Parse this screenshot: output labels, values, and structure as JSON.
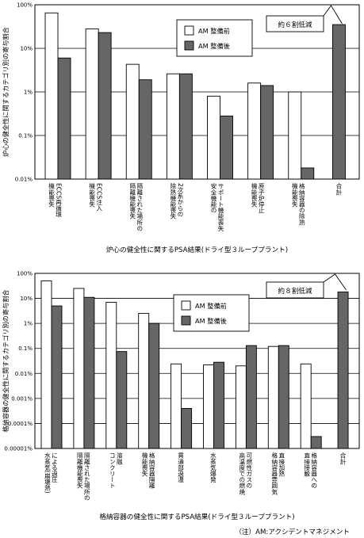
{
  "colors": {
    "before": "#ffffff",
    "after": "#666666",
    "stroke": "#000000"
  },
  "chart_data": [
    {
      "type": "bar",
      "title": "炉心の健全性に関するPSA結果(ドライ型３ループプラント)",
      "ylabel": "炉心の健全性に関するカテゴリ別の寄与割合",
      "scale": "log",
      "ylim": [
        0.01,
        100
      ],
      "yticks": [
        "0.01%",
        "0.1%",
        "1%",
        "10%",
        "100%"
      ],
      "grid": "horizontal at decades",
      "legend_position": "top-center",
      "categories": [
        [
          "ECCS再循環",
          "機能喪失"
        ],
        [
          "ECCS注入",
          "機能喪失"
        ],
        [
          "隔離された場所の",
          "隔離機能喪失"
        ],
        [
          "2次系からの",
          "除熱機能喪失"
        ],
        [
          "サポート機能喪失",
          "安全機能の"
        ],
        [
          "原子炉停止",
          "機能喪失"
        ],
        [
          "格納容器の除熱",
          "機能喪失"
        ],
        [
          "合計"
        ]
      ],
      "series": [
        {
          "name": "AM 整備前",
          "values": [
            65,
            28,
            4.3,
            2.6,
            0.8,
            1.6,
            1.0,
            null
          ]
        },
        {
          "name": "AM 整備後",
          "values": [
            6,
            23,
            1.9,
            2.6,
            0.28,
            1.4,
            0.018,
            35
          ]
        }
      ],
      "annotation": "約６割低減"
    },
    {
      "type": "bar",
      "title": "格納容器の健全性に関するPSA結果(ドライ型３ループプラント)",
      "ylabel": "格納容器の健全性に関するカテゴリ別の寄与割合",
      "scale": "log",
      "ylim": [
        1e-05,
        100
      ],
      "yticks": [
        "0.00001%",
        "0.0001%",
        "0.001%",
        "0.01%",
        "0.1%",
        "1%",
        "10%",
        "100%"
      ],
      "grid": "horizontal at decades",
      "legend_position": "top-center",
      "categories": [
        [
          "による過圧",
          "水蒸気(崩壊熱)"
        ],
        [
          "隔離された場所の",
          "隔離機能喪失"
        ],
        [
          "溶融",
          "コンクリート"
        ],
        [
          "格納容器隔離",
          "機能喪失"
        ],
        [
          "貫通部過温"
        ],
        [
          "水蒸気爆発"
        ],
        [
          "可燃性ガスの",
          "高温度での燃焼"
        ],
        [
          "直接加熱",
          "格納容器雰囲気"
        ],
        [
          "格納容器への",
          "直接接触"
        ],
        [
          "合計"
        ]
      ],
      "series": [
        {
          "name": "AM 整備前",
          "values": [
            50,
            25,
            7,
            2.5,
            0.024,
            0.022,
            0.02,
            0.12,
            0.024,
            null
          ]
        },
        {
          "name": "AM 整備後",
          "values": [
            5,
            11,
            0.075,
            1.0,
            0.0004,
            0.028,
            0.13,
            0.13,
            3e-05,
            18
          ]
        }
      ],
      "annotation": "約８割低減"
    }
  ],
  "footnote": "（注）AM:アクシデントマネジメント"
}
